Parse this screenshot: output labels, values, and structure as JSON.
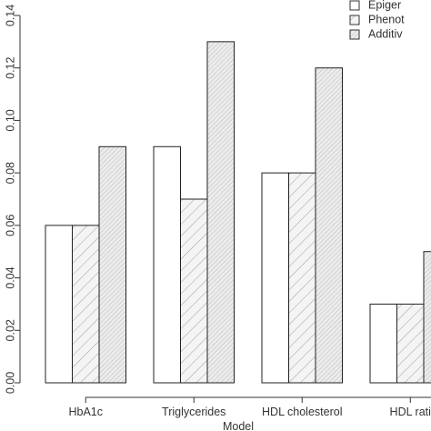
{
  "chart_data": {
    "type": "bar",
    "xlabel": "Model",
    "ylabel": "",
    "ylim": [
      0,
      0.14
    ],
    "yticks": [
      "0.00",
      "0.02",
      "0.04",
      "0.06",
      "0.08",
      "0.10",
      "0.12",
      "0.14"
    ],
    "categories": [
      "HbA1c",
      "Triglycerides",
      "HDL cholesterol",
      "HDL rati"
    ],
    "series": [
      {
        "name": "Epiger",
        "fill": "#ffffff",
        "pattern": "none",
        "values": [
          0.06,
          0.09,
          0.08,
          0.03
        ]
      },
      {
        "name": "Phenot",
        "fill": "#f4f4f4",
        "pattern": "diagonal-sparse",
        "values": [
          0.06,
          0.07,
          0.08,
          0.03
        ]
      },
      {
        "name": "Additiv",
        "fill": "#ebebeb",
        "pattern": "diagonal-dense",
        "values": [
          0.09,
          0.13,
          0.12,
          0.05
        ]
      }
    ],
    "legend_position": "top-right",
    "grid": false
  }
}
